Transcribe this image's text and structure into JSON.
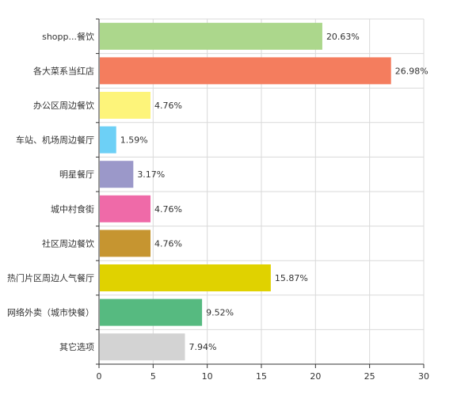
{
  "chart_data": {
    "type": "bar",
    "orientation": "horizontal",
    "categories": [
      "shopp...餐饮",
      "各大菜系当红店",
      "办公区周边餐饮",
      "车站、机场周边餐厅",
      "明星餐厅",
      "城中村食街",
      "社区周边餐饮",
      "热门片区周边人气餐厅",
      "网络外卖（城市快餐）",
      "其它选项"
    ],
    "values": [
      20.63,
      26.98,
      4.76,
      1.59,
      3.17,
      4.76,
      4.76,
      15.87,
      9.52,
      7.94
    ],
    "value_labels": [
      "20.63%",
      "26.98%",
      "4.76%",
      "1.59%",
      "3.17%",
      "4.76%",
      "4.76%",
      "15.87%",
      "9.52%",
      "7.94%"
    ],
    "colors": [
      "#acd78c",
      "#f47d5e",
      "#fdf47a",
      "#6dd0f6",
      "#9b98c9",
      "#ef6aa8",
      "#c69530",
      "#e0d200",
      "#56ba80",
      "#d3d3d3"
    ],
    "xlim": [
      0,
      30
    ],
    "xticks": [
      0,
      5,
      10,
      15,
      20,
      25,
      30
    ],
    "grid": true,
    "title": "",
    "xlabel": "",
    "ylabel": ""
  }
}
